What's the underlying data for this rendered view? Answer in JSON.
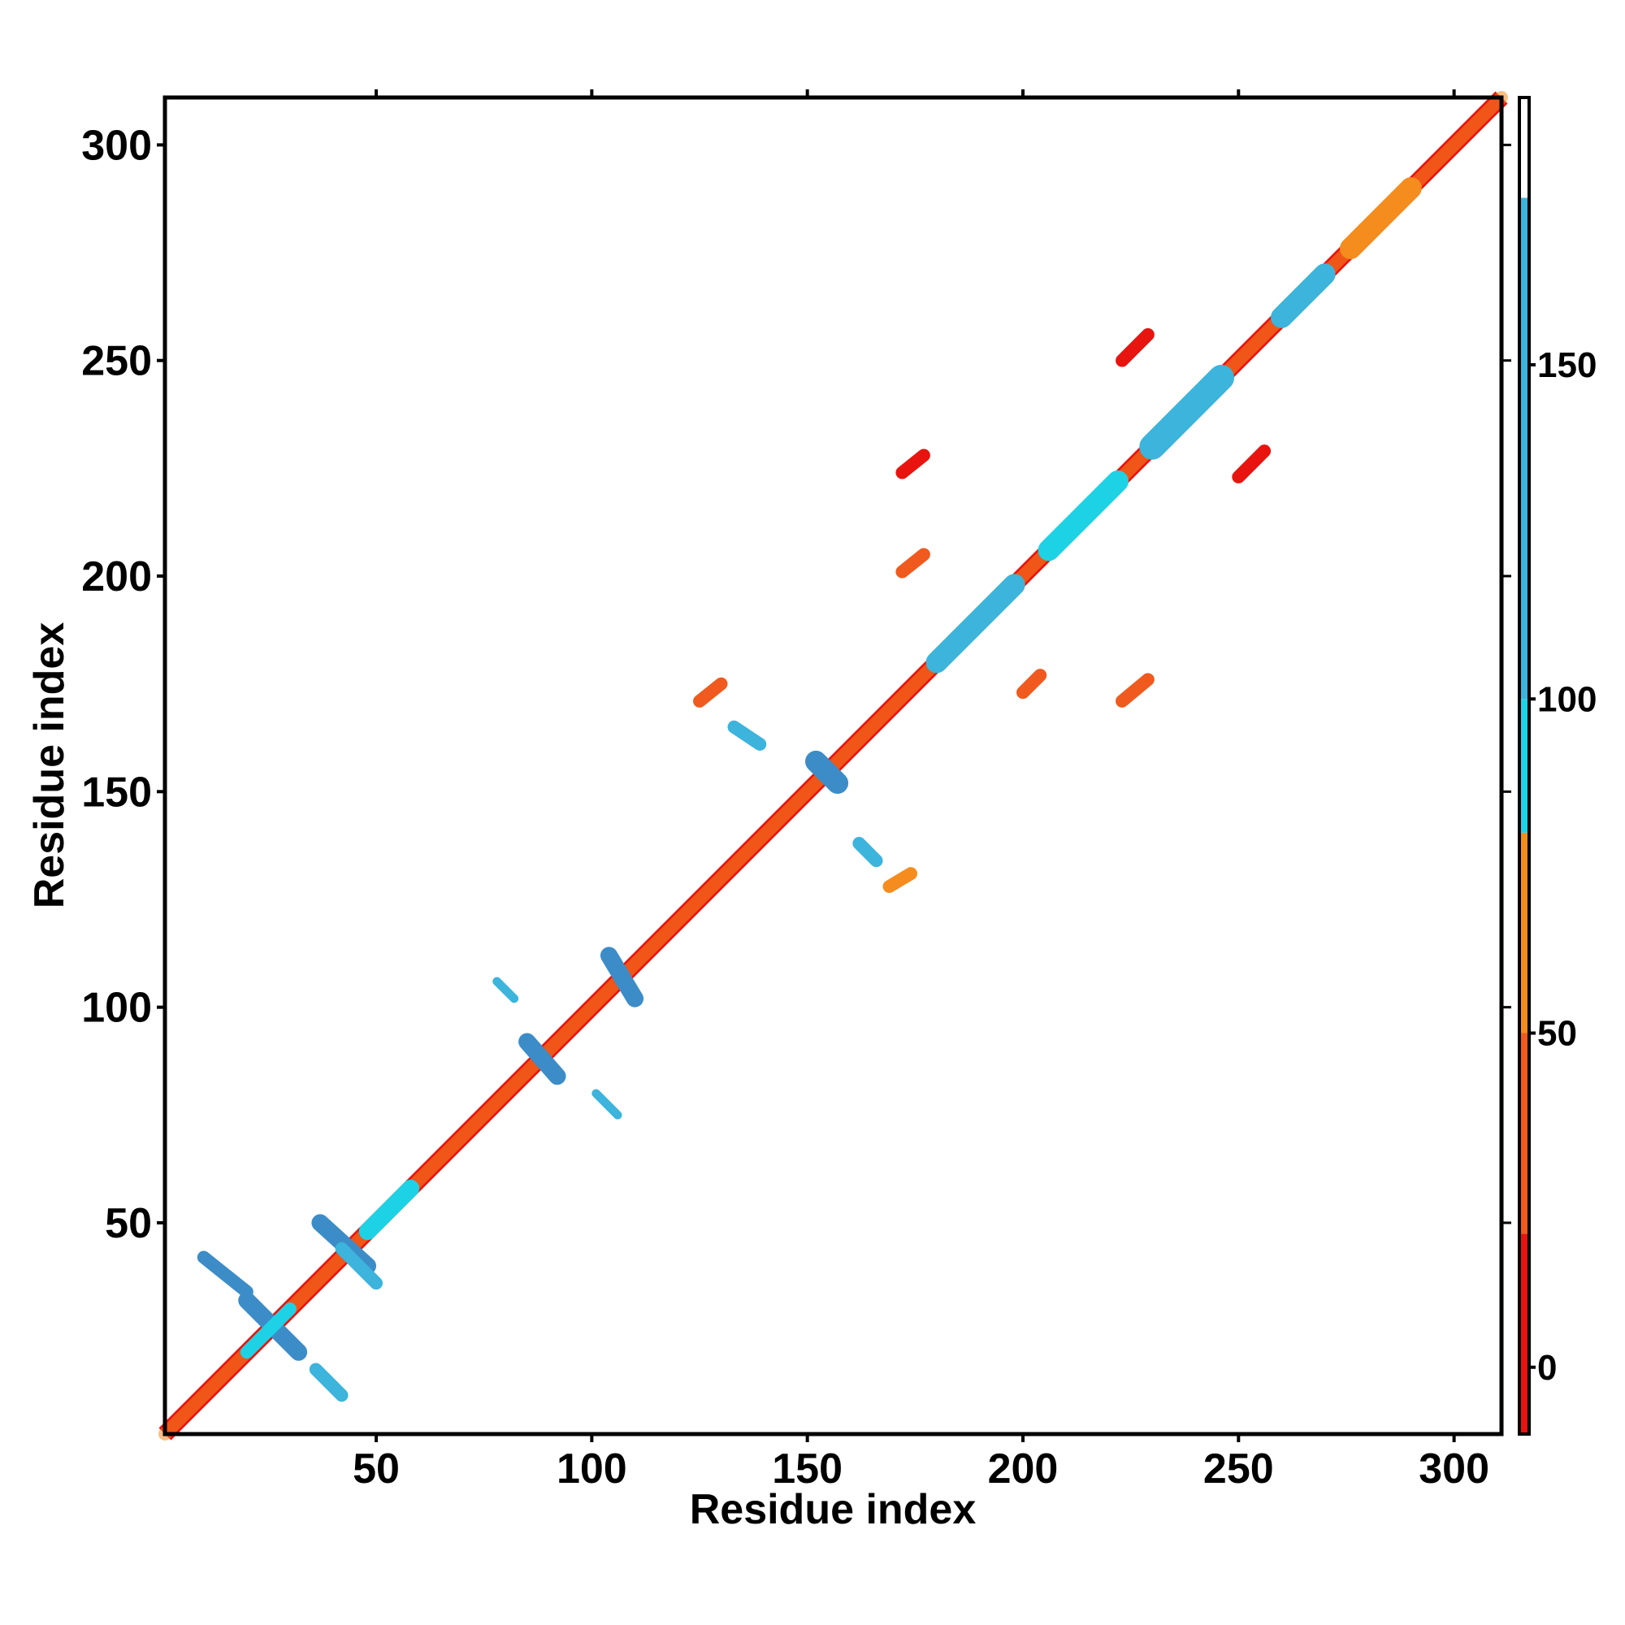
{
  "chart_data": {
    "type": "heatmap",
    "title": "",
    "xlabel": "Residue index",
    "ylabel": "Residue index",
    "xlim": [
      1,
      311
    ],
    "ylim": [
      1,
      311
    ],
    "x_ticks": [
      50,
      100,
      150,
      200,
      250,
      300
    ],
    "y_ticks": [
      50,
      100,
      150,
      200,
      250,
      300
    ],
    "x_tick_labels": [
      "50",
      "100",
      "150",
      "200",
      "250",
      "300"
    ],
    "y_tick_labels": [
      "50",
      "100",
      "150",
      "200",
      "250",
      "300"
    ],
    "grid": false,
    "colorbar": {
      "range": [
        -10,
        190
      ],
      "ticks": [
        0,
        50,
        100,
        150
      ],
      "tick_labels": [
        "0",
        "50",
        "100",
        "150"
      ],
      "bands": [
        {
          "from": -10,
          "to": 20,
          "color": "#e8140f"
        },
        {
          "from": 20,
          "to": 50,
          "color": "#f05a1e"
        },
        {
          "from": 50,
          "to": 80,
          "color": "#f58c1e"
        },
        {
          "from": 80,
          "to": 100,
          "color": "#1ed2e6"
        },
        {
          "from": 100,
          "to": 175,
          "color": "#3cb4dc"
        },
        {
          "from": 175,
          "to": 190,
          "color": "#ffffff"
        }
      ]
    },
    "diagonal": {
      "from": 1,
      "to": 311,
      "color": "#e8140f"
    },
    "features": [
      {
        "x": [
          1,
          311
        ],
        "y": [
          1,
          311
        ],
        "width": 3,
        "color": "#f58c1e",
        "kind": "diagonal-band"
      },
      {
        "x": [
          10,
          20
        ],
        "y": [
          42,
          34
        ],
        "width": 3,
        "color": "#3c8cc8"
      },
      {
        "x": [
          20,
          32
        ],
        "y": [
          32,
          20
        ],
        "width": 4,
        "color": "#3c8cc8"
      },
      {
        "x": [
          20,
          30
        ],
        "y": [
          20,
          30
        ],
        "width": 3,
        "color": "#1ed2e6"
      },
      {
        "x": [
          36,
          42
        ],
        "y": [
          16,
          10
        ],
        "width": 3,
        "color": "#3cb4dc"
      },
      {
        "x": [
          37,
          48
        ],
        "y": [
          50,
          40
        ],
        "width": 4,
        "color": "#3c8cc8"
      },
      {
        "x": [
          42,
          50
        ],
        "y": [
          44,
          36
        ],
        "width": 3,
        "color": "#3cb4dc"
      },
      {
        "x": [
          48,
          58
        ],
        "y": [
          48,
          58
        ],
        "width": 4,
        "color": "#1ed2e6"
      },
      {
        "x": [
          85,
          92
        ],
        "y": [
          92,
          84
        ],
        "width": 4,
        "color": "#3c8cc8"
      },
      {
        "x": [
          104,
          110
        ],
        "y": [
          112,
          102
        ],
        "width": 4,
        "color": "#3c8cc8"
      },
      {
        "x": [
          78,
          82
        ],
        "y": [
          106,
          102
        ],
        "width": 2,
        "color": "#3cb4dc"
      },
      {
        "x": [
          101,
          106
        ],
        "y": [
          80,
          75
        ],
        "width": 2,
        "color": "#3cb4dc"
      },
      {
        "x": [
          125,
          130
        ],
        "y": [
          171,
          175
        ],
        "width": 3,
        "color": "#f05a1e"
      },
      {
        "x": [
          133,
          139
        ],
        "y": [
          165,
          161
        ],
        "width": 3,
        "color": "#3cb4dc"
      },
      {
        "x": [
          152,
          157
        ],
        "y": [
          157,
          152
        ],
        "width": 5,
        "color": "#3c8cc8"
      },
      {
        "x": [
          162,
          166
        ],
        "y": [
          138,
          134
        ],
        "width": 3,
        "color": "#3cb4dc"
      },
      {
        "x": [
          169,
          174
        ],
        "y": [
          128,
          131
        ],
        "width": 3,
        "color": "#f58c1e"
      },
      {
        "x": [
          172,
          177
        ],
        "y": [
          224,
          228
        ],
        "width": 3,
        "color": "#e8140f"
      },
      {
        "x": [
          172,
          177
        ],
        "y": [
          201,
          205
        ],
        "width": 3,
        "color": "#f05a1e"
      },
      {
        "x": [
          180,
          198
        ],
        "y": [
          180,
          198
        ],
        "width": 5,
        "color": "#3cb4dc"
      },
      {
        "x": [
          200,
          204
        ],
        "y": [
          173,
          177
        ],
        "width": 3,
        "color": "#f05a1e"
      },
      {
        "x": [
          206,
          222
        ],
        "y": [
          206,
          222
        ],
        "width": 5,
        "color": "#1ed2e6"
      },
      {
        "x": [
          223,
          229
        ],
        "y": [
          250,
          256
        ],
        "width": 3,
        "color": "#e8140f"
      },
      {
        "x": [
          223,
          229
        ],
        "y": [
          171,
          176
        ],
        "width": 3,
        "color": "#f05a1e"
      },
      {
        "x": [
          230,
          246
        ],
        "y": [
          230,
          246
        ],
        "width": 6,
        "color": "#3cb4dc"
      },
      {
        "x": [
          250,
          256
        ],
        "y": [
          223,
          229
        ],
        "width": 3,
        "color": "#e8140f"
      },
      {
        "x": [
          260,
          270
        ],
        "y": [
          260,
          270
        ],
        "width": 5,
        "color": "#3cb4dc"
      },
      {
        "x": [
          276,
          290
        ],
        "y": [
          276,
          290
        ],
        "width": 5,
        "color": "#f58c1e"
      }
    ]
  }
}
